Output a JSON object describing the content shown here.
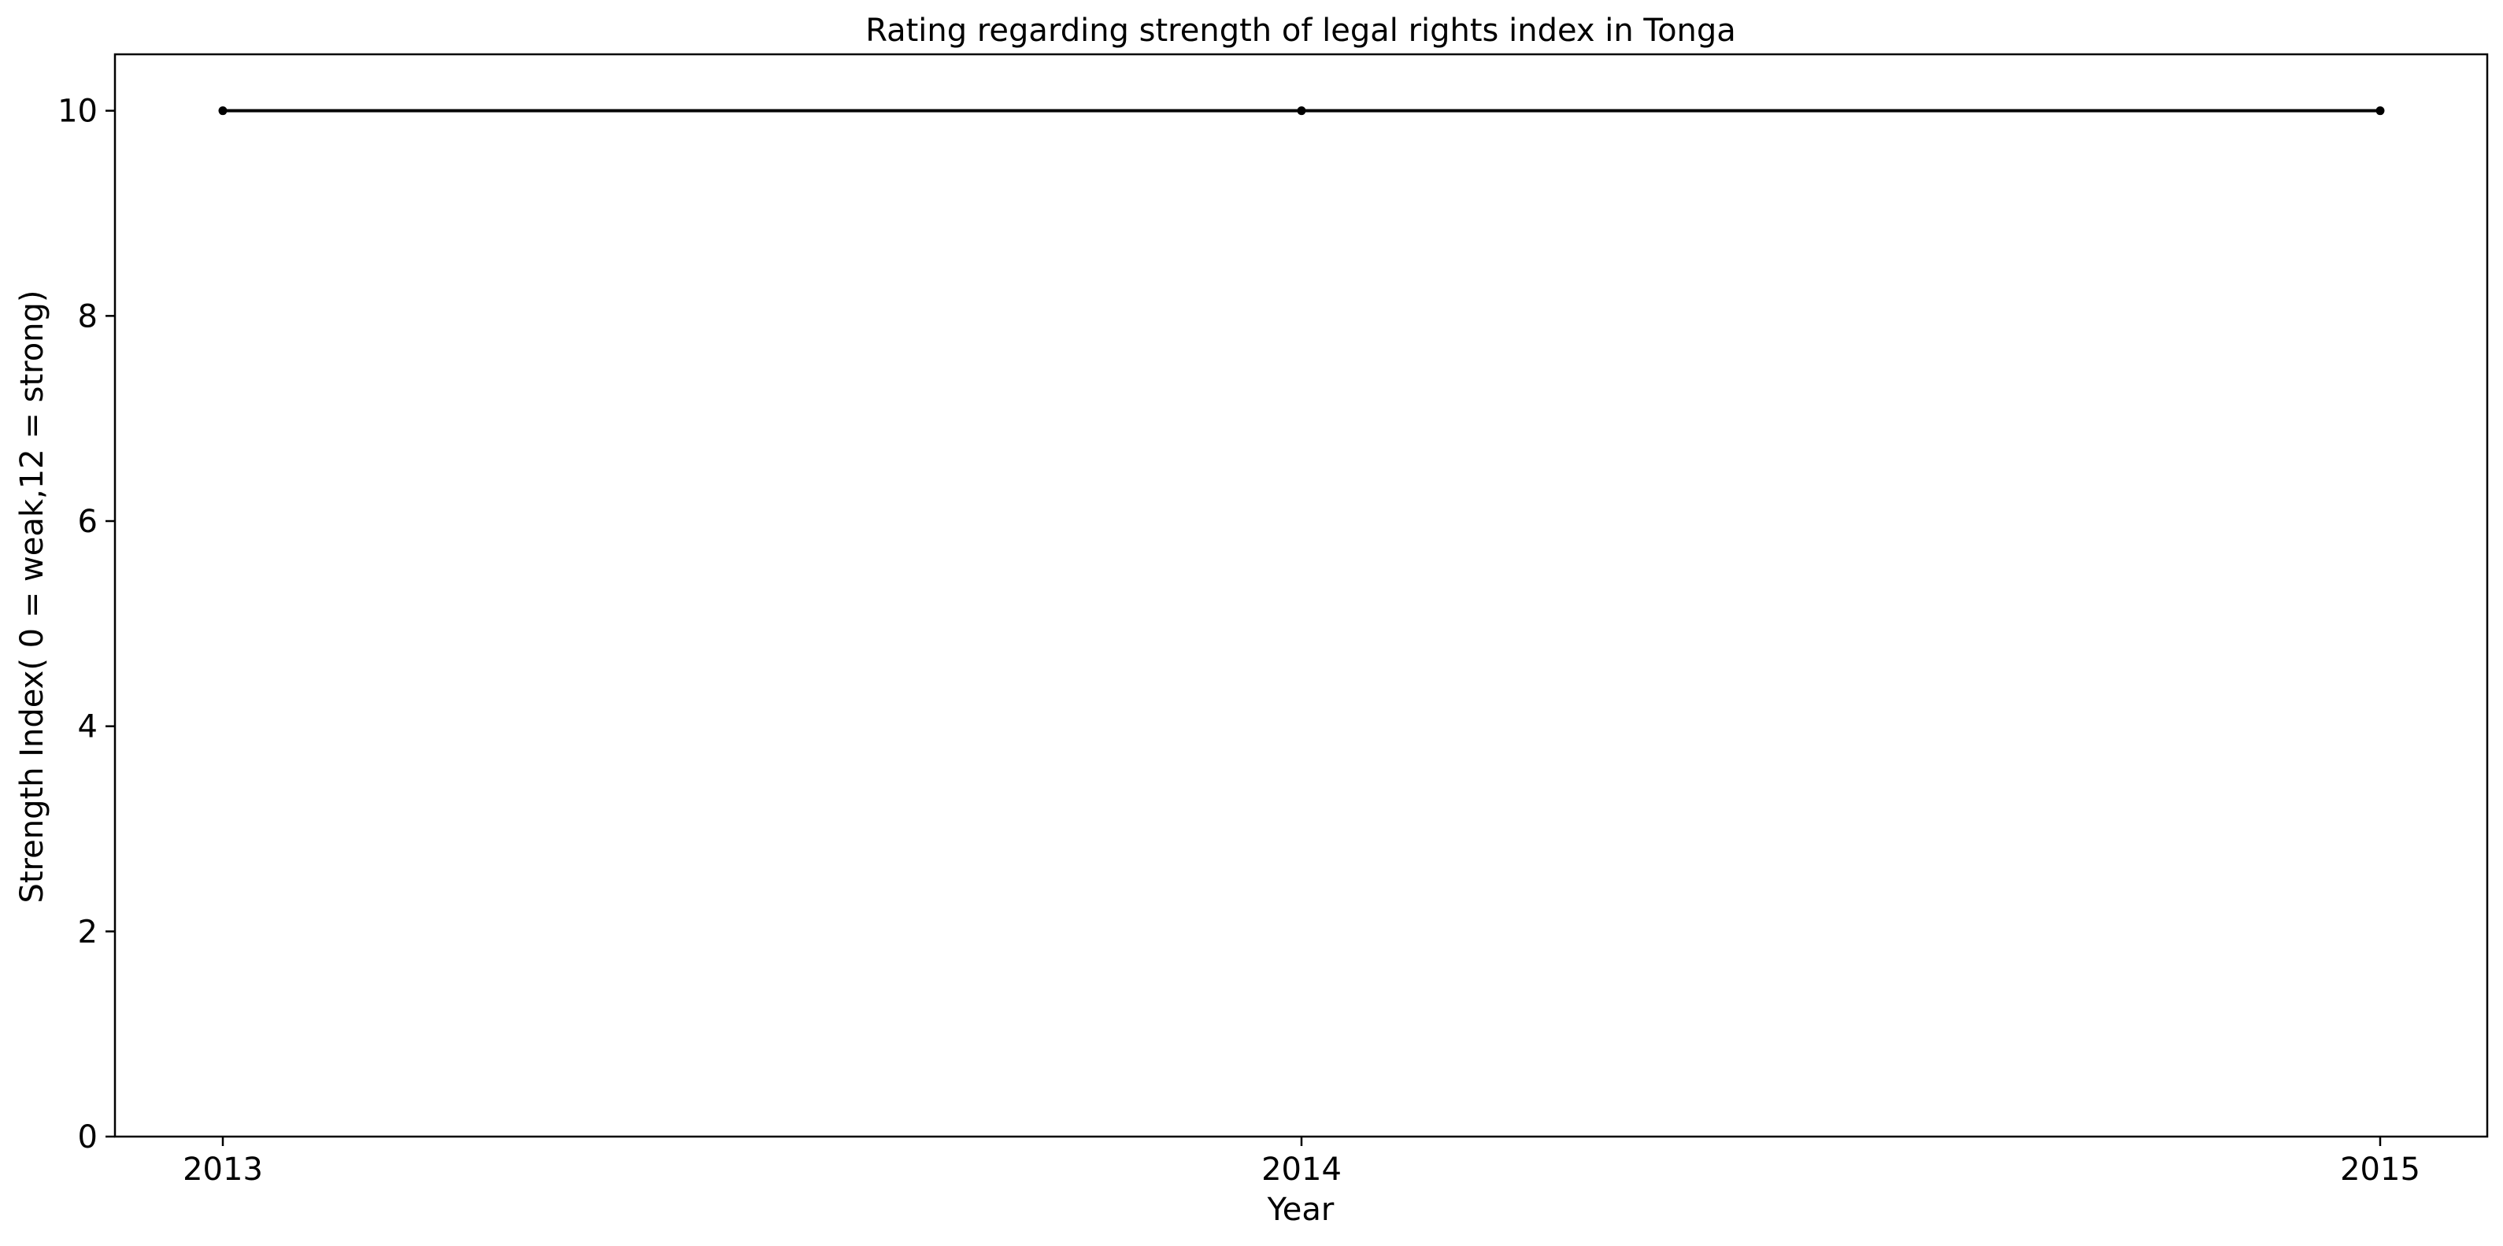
{
  "chart_data": {
    "type": "line",
    "title": "Rating regarding strength of legal rights index in Tonga",
    "xlabel": "Year",
    "ylabel": "Strength Index( 0 = weak,12 = strong)",
    "x": [
      "2013",
      "2014",
      "2015"
    ],
    "series": [
      {
        "values": [
          10,
          10,
          10
        ],
        "color": "#000000",
        "marker": "circle"
      }
    ],
    "xticks": [
      "2013",
      "2014",
      "2015"
    ],
    "yticks": [
      "0",
      "2",
      "4",
      "6",
      "8",
      "10"
    ],
    "ylim": [
      0,
      10.55
    ],
    "grid": false,
    "legend": "none"
  }
}
